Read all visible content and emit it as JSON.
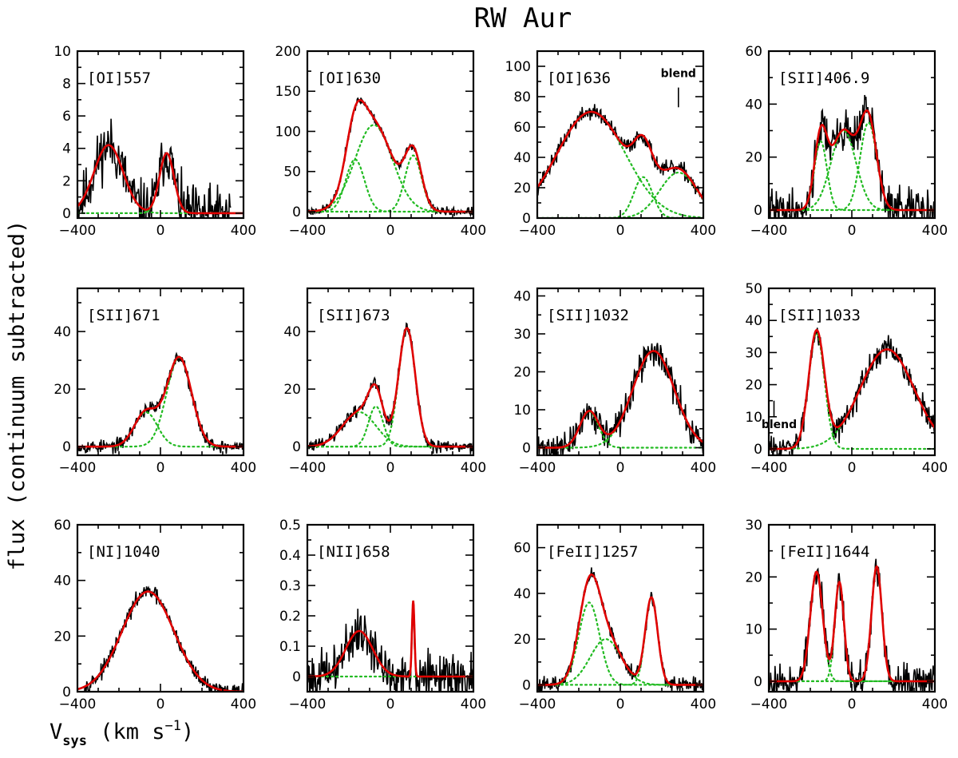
{
  "figure": {
    "title": "RW Aur",
    "ylabel": "flux (continuum subtracted)",
    "xlabel_main": "V",
    "xlabel_sub": "sys",
    "xlabel_units": " (km s",
    "xlabel_exp": "−1",
    "xlabel_close": ")",
    "colors": {
      "observed": "#000000",
      "fit": "#e00000",
      "components": "#22bb22"
    }
  },
  "chart_data": [
    {
      "type": "line",
      "line_label": "[OI]557",
      "xlim": [
        -400,
        400
      ],
      "ylim": [
        -0.3,
        10
      ],
      "xticks": [
        -400,
        0,
        400
      ],
      "xtick_labels": [
        "−400",
        "0",
        "400"
      ],
      "yticks": [
        0,
        2,
        4,
        6,
        8,
        10
      ],
      "ytick_labels": [
        "0",
        "2",
        "4",
        "6",
        "8",
        "10"
      ],
      "components": [
        {
          "center": -250,
          "amplitude": 4.2,
          "sigma": 70
        },
        {
          "center": 30,
          "amplitude": 3.7,
          "sigma": 35
        }
      ],
      "noise": 1.3,
      "data_range": [
        -400,
        340
      ],
      "seed": 11
    },
    {
      "type": "line",
      "line_label": "[OI]630",
      "xlim": [
        -400,
        400
      ],
      "ylim": [
        -8,
        200
      ],
      "xticks": [
        -400,
        0,
        400
      ],
      "xtick_labels": [
        "−400",
        "0",
        "400"
      ],
      "yticks": [
        0,
        50,
        100,
        150,
        200
      ],
      "ytick_labels": [
        "0",
        "50",
        "100",
        "150",
        "200"
      ],
      "components": [
        {
          "center": -170,
          "amplitude": 65,
          "sigma": 45
        },
        {
          "center": -80,
          "amplitude": 108,
          "sigma": 90
        },
        {
          "center": 110,
          "amplitude": 70,
          "sigma": 40
        }
      ],
      "noise": 4,
      "data_range": [
        -400,
        400
      ],
      "seed": 23
    },
    {
      "type": "line",
      "line_label": "[OI]636",
      "xlim": [
        -400,
        400
      ],
      "ylim": [
        0,
        110
      ],
      "xticks": [
        -400,
        0,
        400
      ],
      "xtick_labels": [
        "−400",
        "0",
        "400"
      ],
      "yticks": [
        0,
        20,
        40,
        60,
        80,
        100
      ],
      "ytick_labels": [
        "0",
        "20",
        "40",
        "60",
        "80",
        "100"
      ],
      "components": [
        {
          "center": -140,
          "amplitude": 70,
          "sigma": 165
        },
        {
          "center": 110,
          "amplitude": 27,
          "sigma": 45
        },
        {
          "center": 280,
          "amplitude": 30,
          "sigma": 90
        }
      ],
      "noise": 4,
      "data_range": [
        -400,
        400
      ],
      "seed": 37,
      "annotation": {
        "text": "blend",
        "x": 280,
        "y": 93,
        "tick_x": 280,
        "tick_y": [
          73,
          86
        ]
      }
    },
    {
      "type": "line",
      "line_label": "[SII]406.9",
      "xlim": [
        -400,
        400
      ],
      "ylim": [
        -3,
        60
      ],
      "xticks": [
        -400,
        0,
        400
      ],
      "xtick_labels": [
        "−400",
        "0",
        "400"
      ],
      "yticks": [
        0,
        20,
        40,
        60
      ],
      "ytick_labels": [
        "0",
        "20",
        "40",
        "60"
      ],
      "components": [
        {
          "center": -150,
          "amplitude": 26,
          "sigma": 30
        },
        {
          "center": -40,
          "amplitude": 30,
          "sigma": 60
        },
        {
          "center": 80,
          "amplitude": 33,
          "sigma": 40
        }
      ],
      "noise": 6,
      "data_range": [
        -400,
        400
      ],
      "seed": 41
    },
    {
      "type": "line",
      "line_label": "[SII]671",
      "xlim": [
        -400,
        400
      ],
      "ylim": [
        -3,
        55
      ],
      "xticks": [
        -400,
        0,
        400
      ],
      "xtick_labels": [
        "−400",
        "0",
        "400"
      ],
      "yticks": [
        0,
        20,
        40
      ],
      "ytick_labels": [
        "0",
        "20",
        "40"
      ],
      "components": [
        {
          "center": -70,
          "amplitude": 12,
          "sigma": 55
        },
        {
          "center": 90,
          "amplitude": 31,
          "sigma": 60
        }
      ],
      "noise": 1.8,
      "data_range": [
        -400,
        400
      ],
      "seed": 53
    },
    {
      "type": "line",
      "line_label": "[SII]673",
      "xlim": [
        -400,
        400
      ],
      "ylim": [
        -3,
        55
      ],
      "xticks": [
        -400,
        0,
        400
      ],
      "xtick_labels": [
        "−400",
        "0",
        "400"
      ],
      "yticks": [
        0,
        20,
        40
      ],
      "ytick_labels": [
        "0",
        "20",
        "40"
      ],
      "components": [
        {
          "center": -150,
          "amplitude": 12,
          "sigma": 80
        },
        {
          "center": -70,
          "amplitude": 14,
          "sigma": 35
        },
        {
          "center": 80,
          "amplitude": 41,
          "sigma": 40
        }
      ],
      "noise": 1.8,
      "data_range": [
        -400,
        400
      ],
      "seed": 61
    },
    {
      "type": "line",
      "line_label": "[SII]1032",
      "xlim": [
        -400,
        400
      ],
      "ylim": [
        -2,
        42
      ],
      "xticks": [
        -400,
        0,
        400
      ],
      "xtick_labels": [
        "−400",
        "0",
        "400"
      ],
      "yticks": [
        0,
        10,
        20,
        30,
        40
      ],
      "ytick_labels": [
        "0",
        "10",
        "20",
        "30",
        "40"
      ],
      "components": [
        {
          "center": -150,
          "amplitude": 9.5,
          "sigma": 45
        },
        {
          "center": 160,
          "amplitude": 25.5,
          "sigma": 100
        }
      ],
      "noise": 3,
      "data_range": [
        -400,
        400
      ],
      "seed": 71
    },
    {
      "type": "line",
      "line_label": "[SII]1033",
      "xlim": [
        -400,
        400
      ],
      "ylim": [
        -2,
        50
      ],
      "xticks": [
        -400,
        0,
        400
      ],
      "xtick_labels": [
        "−400",
        "0",
        "400"
      ],
      "yticks": [
        0,
        10,
        20,
        30,
        40,
        50
      ],
      "ytick_labels": [
        "0",
        "10",
        "20",
        "30",
        "40",
        "50"
      ],
      "components": [
        {
          "center": -170,
          "amplitude": 36,
          "sigma": 38
        },
        {
          "center": 170,
          "amplitude": 31,
          "sigma": 130
        }
      ],
      "noise": 3,
      "data_range": [
        -400,
        400
      ],
      "seed": 83,
      "fit_range": [
        -330,
        400
      ],
      "annotation": {
        "text": "blend",
        "x": -350,
        "y": 6.5,
        "tick_x": -375,
        "tick_y": [
          10,
          15
        ]
      }
    },
    {
      "type": "line",
      "line_label": "[NI]1040",
      "xlim": [
        -400,
        400
      ],
      "ylim": [
        0,
        60
      ],
      "xticks": [
        -400,
        0,
        400
      ],
      "xtick_labels": [
        "−400",
        "0",
        "400"
      ],
      "yticks": [
        0,
        20,
        40,
        60
      ],
      "ytick_labels": [
        "0",
        "20",
        "40",
        "60"
      ],
      "components": [
        {
          "center": -60,
          "amplitude": 36,
          "sigma": 125
        }
      ],
      "noise": 2,
      "data_range": [
        -370,
        400
      ],
      "seed": 97
    },
    {
      "type": "line",
      "line_label": "[NII]658",
      "xlim": [
        -400,
        400
      ],
      "ylim": [
        -0.05,
        0.5
      ],
      "xticks": [
        -400,
        0,
        400
      ],
      "xtick_labels": [
        "−400",
        "0",
        "400"
      ],
      "yticks": [
        0,
        0.1,
        0.2,
        0.3,
        0.4,
        0.5
      ],
      "ytick_labels": [
        "0",
        "0.1",
        "0.2",
        "0.3",
        "0.4",
        "0.5"
      ],
      "components": [
        {
          "center": -150,
          "amplitude": 0.15,
          "sigma": 65
        },
        {
          "center": 110,
          "amplitude": 0.25,
          "sigma": 6
        }
      ],
      "noise": 0.06,
      "data_range": [
        -400,
        400
      ],
      "seed": 101
    },
    {
      "type": "line",
      "line_label": "[FeII]1257",
      "xlim": [
        -400,
        400
      ],
      "ylim": [
        -3,
        70
      ],
      "xticks": [
        -400,
        0,
        400
      ],
      "xtick_labels": [
        "−400",
        "0",
        "400"
      ],
      "yticks": [
        0,
        20,
        40,
        60
      ],
      "ytick_labels": [
        "0",
        "20",
        "40",
        "60"
      ],
      "components": [
        {
          "center": -150,
          "amplitude": 36,
          "sigma": 50
        },
        {
          "center": -70,
          "amplitude": 20,
          "sigma": 75
        },
        {
          "center": 150,
          "amplitude": 38,
          "sigma": 30
        }
      ],
      "noise": 2.5,
      "data_range": [
        -400,
        400
      ],
      "seed": 113
    },
    {
      "type": "line",
      "line_label": "[FeII]1644",
      "xlim": [
        -400,
        400
      ],
      "ylim": [
        -2,
        30
      ],
      "xticks": [
        -400,
        0,
        400
      ],
      "xtick_labels": [
        "−400",
        "0",
        "400"
      ],
      "yticks": [
        0,
        10,
        20,
        30
      ],
      "ytick_labels": [
        "0",
        "10",
        "20",
        "30"
      ],
      "components": [
        {
          "center": -170,
          "amplitude": 21,
          "sigma": 30
        },
        {
          "center": -60,
          "amplitude": 19,
          "sigma": 22
        },
        {
          "center": 120,
          "amplitude": 22,
          "sigma": 25
        }
      ],
      "noise": 2.5,
      "data_range": [
        -400,
        400
      ],
      "seed": 127
    }
  ]
}
